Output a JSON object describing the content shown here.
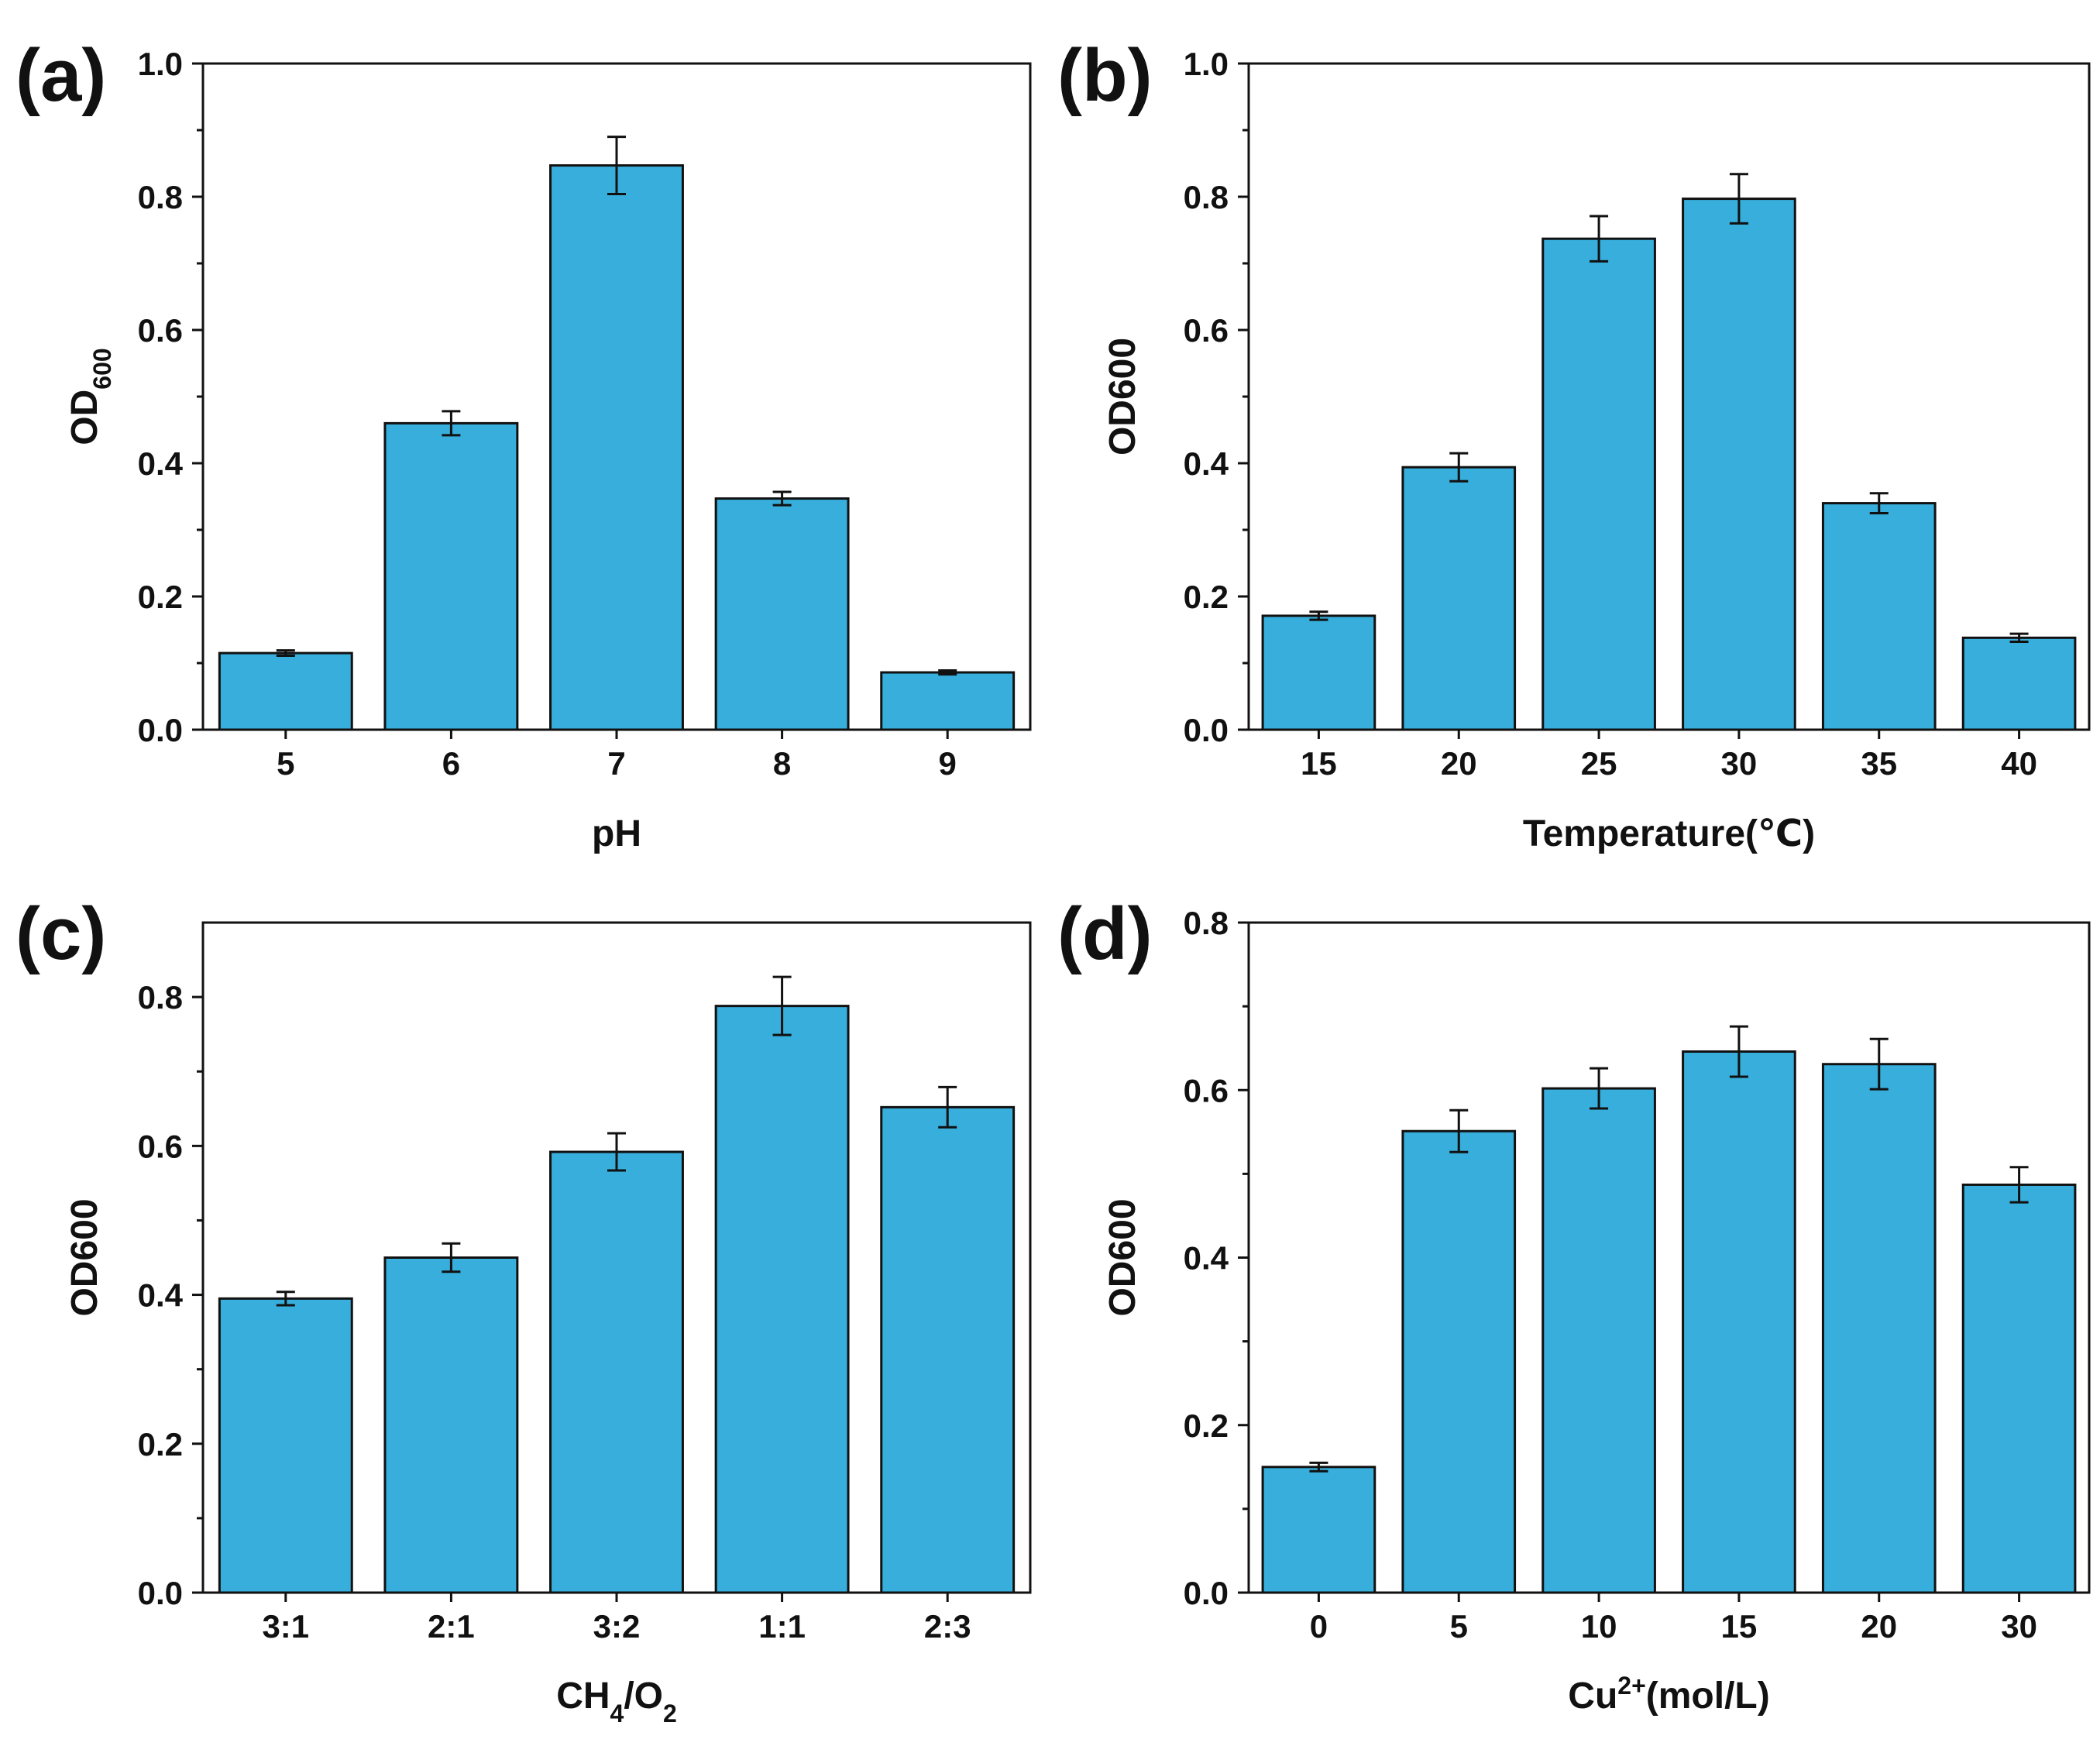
{
  "chart_data": [
    {
      "panel": "(a)",
      "type": "bar",
      "xlabel": "pH",
      "ylabel": {
        "main": "OD",
        "sub": "600",
        "style": "subscript"
      },
      "categories": [
        "5",
        "6",
        "7",
        "8",
        "9"
      ],
      "values": [
        0.115,
        0.46,
        0.847,
        0.347,
        0.086
      ],
      "errors": [
        0.004,
        0.018,
        0.043,
        0.01,
        0.003
      ],
      "ylim": [
        0,
        1.0
      ],
      "yticks": [
        "0.0",
        "0.2",
        "0.4",
        "0.6",
        "0.8",
        "1.0"
      ],
      "grid": false,
      "bar_color": "#37AEDB"
    },
    {
      "panel": "(b)",
      "type": "bar",
      "xlabel": "Temperature(℃)",
      "ylabel": {
        "main": "OD600",
        "sub": "",
        "style": "plain"
      },
      "categories": [
        "15",
        "20",
        "25",
        "30",
        "35",
        "40"
      ],
      "values": [
        0.171,
        0.394,
        0.737,
        0.797,
        0.34,
        0.138
      ],
      "errors": [
        0.006,
        0.021,
        0.034,
        0.037,
        0.015,
        0.006
      ],
      "ylim": [
        0,
        1.0
      ],
      "yticks": [
        "0.0",
        "0.2",
        "0.4",
        "0.6",
        "0.8",
        "1.0"
      ],
      "grid": false,
      "bar_color": "#37AEDB"
    },
    {
      "panel": "(c)",
      "type": "bar",
      "xlabel": {
        "parts": [
          [
            "CH",
            "n"
          ],
          [
            "4",
            "s"
          ],
          [
            "/O",
            "n"
          ],
          [
            "2",
            "s"
          ]
        ]
      },
      "ylabel": {
        "main": "OD600",
        "sub": "",
        "style": "plain"
      },
      "categories": [
        "3:1",
        "2:1",
        "3:2",
        "1:1",
        "2:3"
      ],
      "values": [
        0.395,
        0.45,
        0.592,
        0.788,
        0.652
      ],
      "errors": [
        0.009,
        0.019,
        0.025,
        0.039,
        0.027
      ],
      "ylim": [
        0,
        0.9
      ],
      "yticks": [
        "0.0",
        "0.2",
        "0.4",
        "0.6",
        "0.8"
      ],
      "grid": false,
      "bar_color": "#37AEDB"
    },
    {
      "panel": "(d)",
      "type": "bar",
      "xlabel": {
        "parts": [
          [
            "Cu",
            "n"
          ],
          [
            "2+",
            "p"
          ],
          [
            "(mol/L)",
            "n"
          ]
        ]
      },
      "ylabel": {
        "main": "OD600",
        "sub": "",
        "style": "plain"
      },
      "categories": [
        "0",
        "5",
        "10",
        "15",
        "20",
        "30"
      ],
      "values": [
        0.15,
        0.551,
        0.602,
        0.646,
        0.631,
        0.487
      ],
      "errors": [
        0.005,
        0.025,
        0.024,
        0.03,
        0.03,
        0.021
      ],
      "ylim": [
        0,
        0.8
      ],
      "yticks": [
        "0.0",
        "0.2",
        "0.4",
        "0.6",
        "0.8"
      ],
      "grid": false,
      "bar_color": "#37AEDB"
    }
  ]
}
